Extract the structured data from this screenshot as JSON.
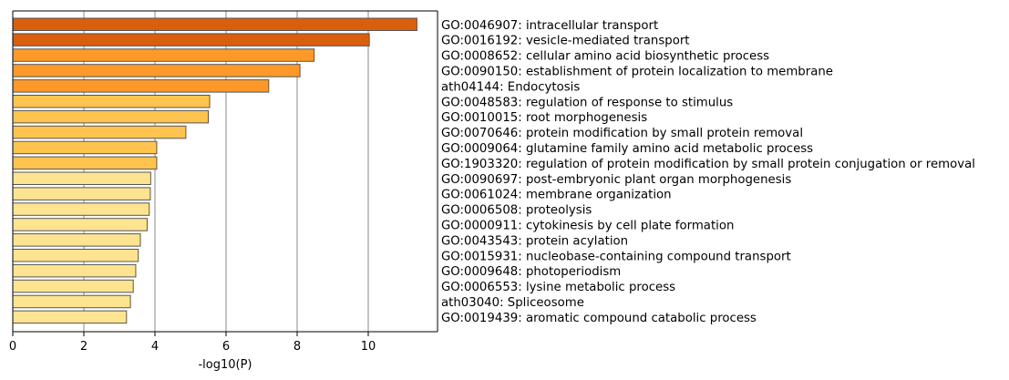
{
  "chart_data": {
    "type": "bar",
    "orientation": "horizontal",
    "xlabel": "-log10(P)",
    "ylabel": "",
    "title": "",
    "xlim": [
      0,
      11.95
    ],
    "xticks": [
      0,
      2,
      4,
      6,
      8,
      10
    ],
    "grid": "vertical",
    "categories": [
      "GO:0046907: intracellular transport",
      "GO:0016192: vesicle-mediated transport",
      "GO:0008652: cellular amino acid biosynthetic process",
      "GO:0090150: establishment of protein localization to membrane",
      "ath04144: Endocytosis",
      "GO:0048583: regulation of response to stimulus",
      "GO:0010015: root morphogenesis",
      "GO:0070646: protein modification by small protein removal",
      "GO:0009064: glutamine family amino acid metabolic process",
      "GO:1903320: regulation of protein modification by small protein conjugation or removal",
      "GO:0090697: post-embryonic plant organ morphogenesis",
      "GO:0061024: membrane organization",
      "GO:0006508: proteolysis",
      "GO:0000911: cytokinesis by cell plate formation",
      "GO:0043543: protein acylation",
      "GO:0015931: nucleobase-containing compound transport",
      "GO:0009648: photoperiodism",
      "GO:0006553: lysine metabolic process",
      "ath03040: Spliceosome",
      "GO:0019439: aromatic compound catabolic process"
    ],
    "values": [
      11.37,
      10.03,
      8.48,
      8.08,
      7.2,
      5.54,
      5.5,
      4.87,
      4.05,
      4.05,
      3.88,
      3.87,
      3.84,
      3.78,
      3.59,
      3.53,
      3.46,
      3.39,
      3.31,
      3.2
    ],
    "colors": [
      "#d95f0e",
      "#d95f0e",
      "#fe9929",
      "#fe9929",
      "#fe9929",
      "#fec44f",
      "#fec44f",
      "#fec44f",
      "#fec44f",
      "#fec44f",
      "#fee391",
      "#fee391",
      "#fee391",
      "#fee391",
      "#fee391",
      "#fee391",
      "#fee391",
      "#fee391",
      "#fee391",
      "#fee391"
    ]
  }
}
